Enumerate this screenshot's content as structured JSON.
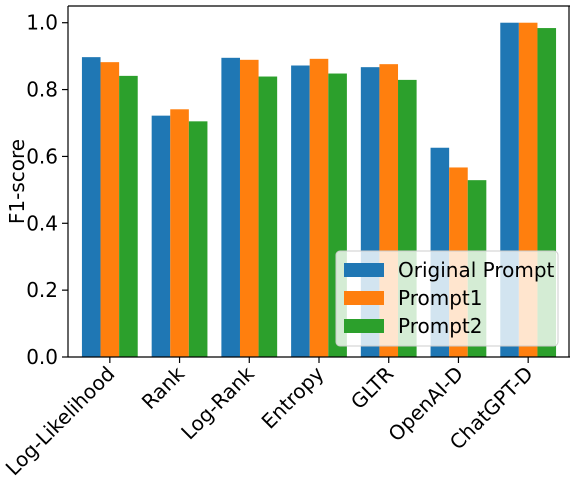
{
  "chart_data": {
    "type": "bar",
    "ylabel": "F1-score",
    "xlabel": "",
    "ylim": [
      0,
      1.05
    ],
    "yticks": [
      "0.0",
      "0.2",
      "0.4",
      "0.6",
      "0.8",
      "1.0"
    ],
    "ytick_values": [
      0.0,
      0.2,
      0.4,
      0.6,
      0.8,
      1.0
    ],
    "categories": [
      "Log-Likelihood",
      "Rank",
      "Log-Rank",
      "Entropy",
      "GLTR",
      "OpenAI-D",
      "ChatGPT-D"
    ],
    "series": [
      {
        "name": "Original Prompt",
        "color": "#1f77b4",
        "values": [
          0.897,
          0.722,
          0.895,
          0.872,
          0.867,
          0.626,
          1.0
        ]
      },
      {
        "name": "Prompt1",
        "color": "#ff7f0e",
        "values": [
          0.882,
          0.741,
          0.889,
          0.892,
          0.876,
          0.567,
          1.0
        ]
      },
      {
        "name": "Prompt2",
        "color": "#2ca02c",
        "values": [
          0.841,
          0.705,
          0.839,
          0.848,
          0.829,
          0.529,
          0.984
        ]
      }
    ],
    "legend": {
      "placement": "lower-right",
      "entries": [
        "Original Prompt",
        "Prompt1",
        "Prompt2"
      ]
    },
    "grid": false
  }
}
